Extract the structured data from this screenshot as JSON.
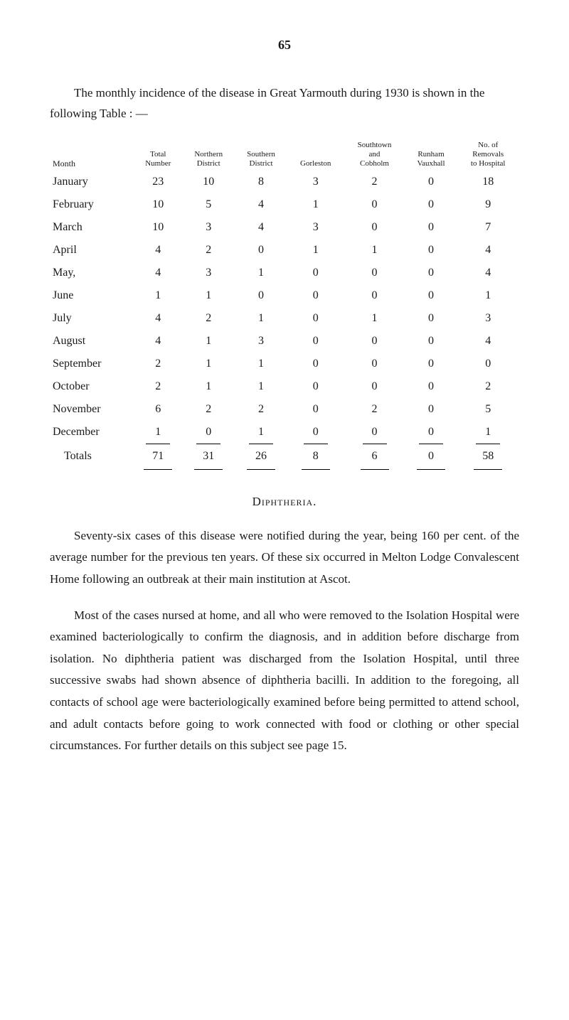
{
  "page_number": "65",
  "intro": "The monthly incidence of the disease in Great Yarmouth during 1930 is shown in the following Table : —",
  "table": {
    "headers": {
      "month": "Month",
      "total_number": "Total\nNumber",
      "northern": "Northern\nDistrict",
      "southern": "Southern\nDistrict",
      "gorleston": "Gorleston",
      "southtown": "Southtown\nand\nCobholm",
      "runham": "Runham\nVauxhall",
      "removals": "No. of\nRemovals\nto Hospital"
    },
    "rows": [
      {
        "month": "January",
        "total": "23",
        "northern": "10",
        "southern": "8",
        "gorleston": "3",
        "southtown": "2",
        "runham": "0",
        "removals": "18"
      },
      {
        "month": "February",
        "total": "10",
        "northern": "5",
        "southern": "4",
        "gorleston": "1",
        "southtown": "0",
        "runham": "0",
        "removals": "9"
      },
      {
        "month": "March",
        "total": "10",
        "northern": "3",
        "southern": "4",
        "gorleston": "3",
        "southtown": "0",
        "runham": "0",
        "removals": "7"
      },
      {
        "month": "April",
        "total": "4",
        "northern": "2",
        "southern": "0",
        "gorleston": "1",
        "southtown": "1",
        "runham": "0",
        "removals": "4"
      },
      {
        "month": "May,",
        "total": "4",
        "northern": "3",
        "southern": "1",
        "gorleston": "0",
        "southtown": "0",
        "runham": "0",
        "removals": "4"
      },
      {
        "month": "June",
        "total": "1",
        "northern": "1",
        "southern": "0",
        "gorleston": "0",
        "southtown": "0",
        "runham": "0",
        "removals": "1"
      },
      {
        "month": "July",
        "total": "4",
        "northern": "2",
        "southern": "1",
        "gorleston": "0",
        "southtown": "1",
        "runham": "0",
        "removals": "3"
      },
      {
        "month": "August",
        "total": "4",
        "northern": "1",
        "southern": "3",
        "gorleston": "0",
        "southtown": "0",
        "runham": "0",
        "removals": "4"
      },
      {
        "month": "September",
        "total": "2",
        "northern": "1",
        "southern": "1",
        "gorleston": "0",
        "southtown": "0",
        "runham": "0",
        "removals": "0"
      },
      {
        "month": "October",
        "total": "2",
        "northern": "1",
        "southern": "1",
        "gorleston": "0",
        "southtown": "0",
        "runham": "0",
        "removals": "2"
      },
      {
        "month": "November",
        "total": "6",
        "northern": "2",
        "southern": "2",
        "gorleston": "0",
        "southtown": "2",
        "runham": "0",
        "removals": "5"
      },
      {
        "month": "December",
        "total": "1",
        "northern": "0",
        "southern": "1",
        "gorleston": "0",
        "southtown": "0",
        "runham": "0",
        "removals": "1"
      }
    ],
    "totals": {
      "label": "Totals",
      "total": "71",
      "northern": "31",
      "southern": "26",
      "gorleston": "8",
      "southtown": "6",
      "runham": "0",
      "removals": "58"
    }
  },
  "section_title": "Diphtheria.",
  "para1": "Seventy-six cases of this disease were notified during the year, being 160 per cent. of the average number for the previous ten years. Of these six occurred in Melton Lodge Convalescent Home following an outbreak at their main institution at Ascot.",
  "para2": "Most of the cases nursed at home, and all who were removed to the Isolation Hospital were examined bacteriologically to confirm the diagnosis, and in addition before discharge from isolation. No diphtheria patient was discharged from the Isolation Hospital, until three successive swabs had shown absence of diphtheria bacilli. In addition to the foregoing, all contacts of school age were bacteriologically examined before being permitted to attend school, and adult contacts before going to work connected with food or clothing or other special circumstances. For further details on this subject see page 15."
}
